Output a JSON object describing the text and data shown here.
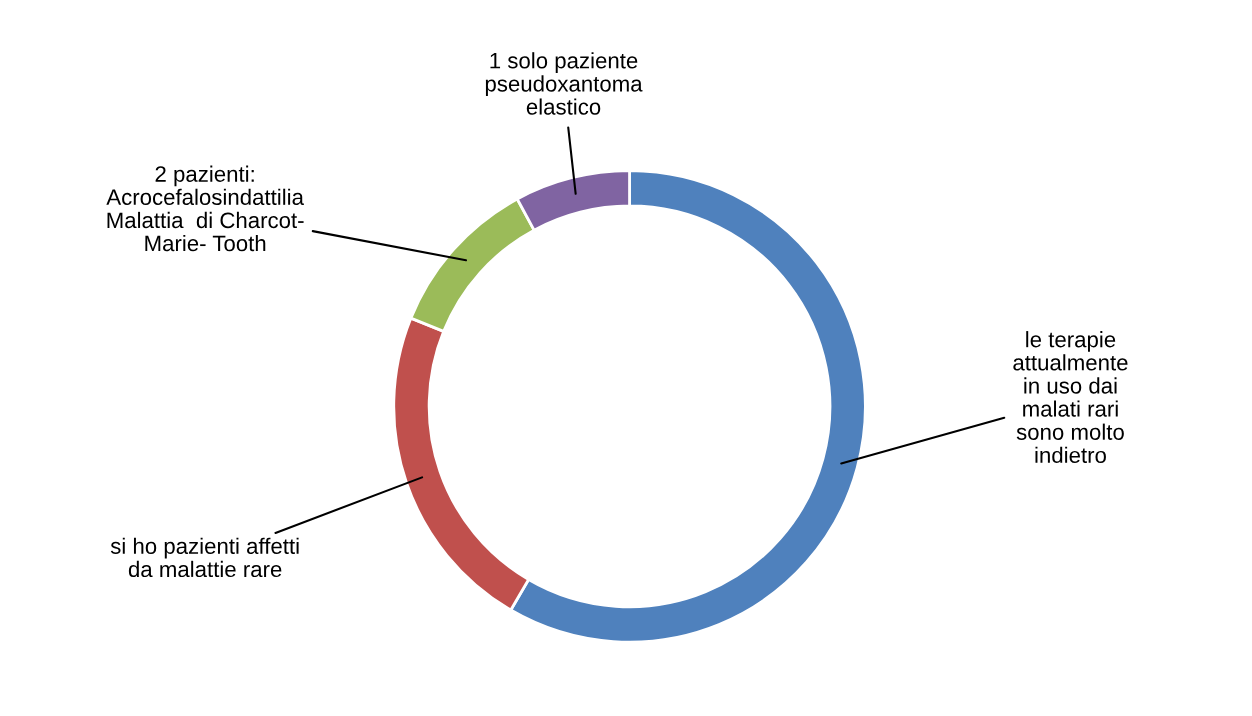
{
  "chart_data": {
    "type": "donut",
    "categories": [
      "le terapie\nattualmente\nin uso dai\nmalati rari\nsono molto\nindietro",
      "si ho pazienti affetti\nda malattie rare",
      "2 pazienti:\nAcrocefalosindattilia\nMalattia  di Charcot-\nMarie- Tooth",
      "1 solo paziente\npseudoxantoma\nelastico"
    ],
    "values": [
      58.4,
      22.7,
      11.0,
      7.9
    ],
    "colors": [
      "#4f81bd",
      "#c0504d",
      "#9bbb59",
      "#8064a2"
    ],
    "legend": false
  }
}
